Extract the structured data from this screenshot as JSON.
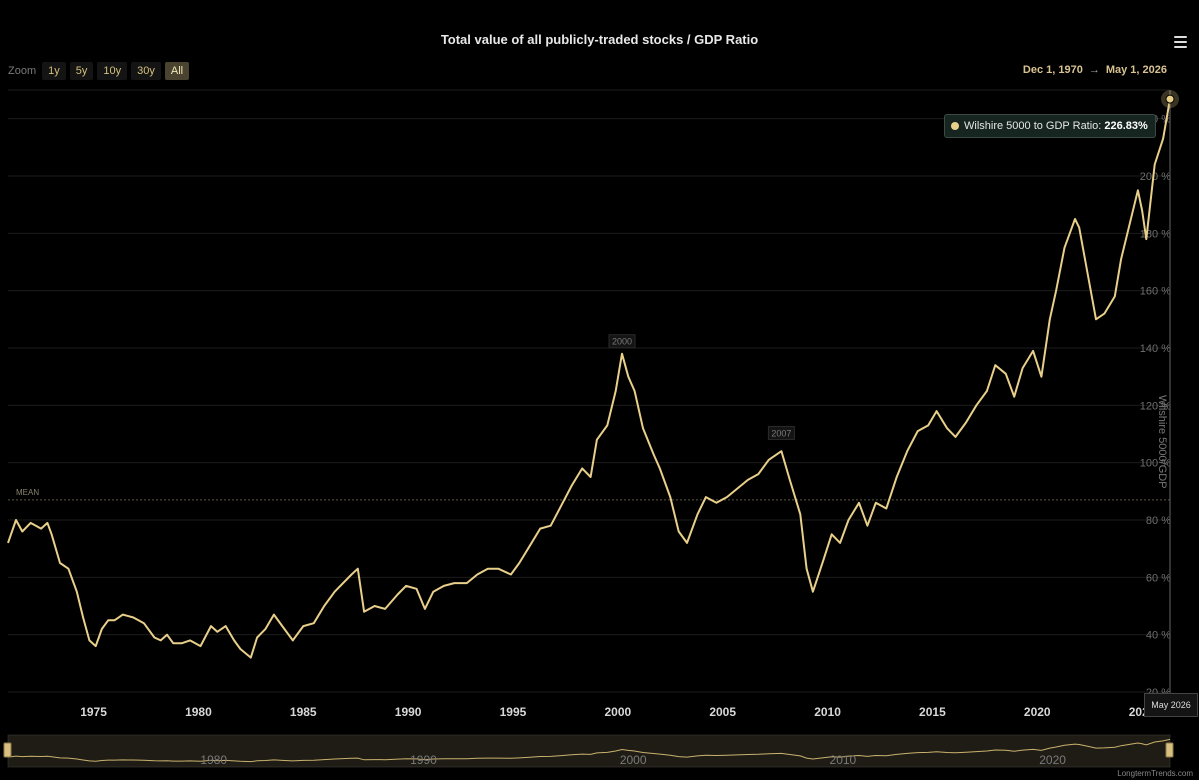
{
  "header": {
    "title": "Total value of all publicly-traded stocks / GDP Ratio"
  },
  "zoom": {
    "label": "Zoom",
    "buttons": [
      "1y",
      "5y",
      "10y",
      "30y",
      "All"
    ],
    "active": "All"
  },
  "range": {
    "from": "Dec 1, 1970",
    "to": "May 1, 2026"
  },
  "tooltip": {
    "series": "Wilshire 5000 to GDP Ratio:",
    "value": "226.83%",
    "date": "May 2026"
  },
  "credit": "LongtermTrends.com",
  "colors": {
    "line": "#e8cf8a",
    "background": "#000000",
    "grid": "#1c1c1c"
  },
  "chart_data": {
    "type": "line",
    "ylabel": "Wilshire 5000/GDP",
    "ylim": [
      20,
      230
    ],
    "xlim": [
      1970.92,
      2026.33
    ],
    "y_ticks": [
      20,
      40,
      60,
      80,
      100,
      120,
      140,
      160,
      180,
      200,
      220
    ],
    "y_tick_suffix": " %",
    "x_ticks": [
      1975,
      1980,
      1985,
      1990,
      1995,
      2000,
      2005,
      2010,
      2015,
      2020,
      2025
    ],
    "navigator_ticks": [
      1980,
      1990,
      2000,
      2010,
      2020
    ],
    "mean": {
      "label": "MEAN",
      "value": 87
    },
    "annotations": [
      {
        "label": "2000",
        "x": 2000.2,
        "y": 138
      },
      {
        "label": "2007",
        "x": 2007.8,
        "y": 106
      }
    ],
    "legend": "none",
    "grid": true,
    "series": [
      {
        "name": "Wilshire 5000 to GDP Ratio",
        "points": [
          [
            1970.92,
            72
          ],
          [
            1971.3,
            80
          ],
          [
            1971.6,
            76
          ],
          [
            1972.0,
            79
          ],
          [
            1972.5,
            77
          ],
          [
            1972.8,
            79
          ],
          [
            1973.0,
            75
          ],
          [
            1973.4,
            65
          ],
          [
            1973.8,
            63
          ],
          [
            1974.2,
            55
          ],
          [
            1974.5,
            46
          ],
          [
            1974.8,
            38
          ],
          [
            1975.1,
            36
          ],
          [
            1975.4,
            42
          ],
          [
            1975.7,
            45
          ],
          [
            1976.0,
            45
          ],
          [
            1976.4,
            47
          ],
          [
            1976.9,
            46
          ],
          [
            1977.4,
            44
          ],
          [
            1977.9,
            39
          ],
          [
            1978.2,
            38
          ],
          [
            1978.5,
            40
          ],
          [
            1978.8,
            37
          ],
          [
            1979.2,
            37
          ],
          [
            1979.6,
            38
          ],
          [
            1980.1,
            36
          ],
          [
            1980.6,
            43
          ],
          [
            1980.9,
            41
          ],
          [
            1981.3,
            43
          ],
          [
            1981.7,
            38
          ],
          [
            1982.0,
            35
          ],
          [
            1982.5,
            32
          ],
          [
            1982.8,
            39
          ],
          [
            1983.2,
            42
          ],
          [
            1983.6,
            47
          ],
          [
            1984.0,
            43
          ],
          [
            1984.5,
            38
          ],
          [
            1985.0,
            43
          ],
          [
            1985.5,
            44
          ],
          [
            1986.0,
            50
          ],
          [
            1986.5,
            55
          ],
          [
            1987.3,
            61
          ],
          [
            1987.6,
            63
          ],
          [
            1987.9,
            48
          ],
          [
            1988.4,
            50
          ],
          [
            1988.9,
            49
          ],
          [
            1989.5,
            54
          ],
          [
            1989.9,
            57
          ],
          [
            1990.4,
            56
          ],
          [
            1990.8,
            49
          ],
          [
            1991.2,
            55
          ],
          [
            1991.7,
            57
          ],
          [
            1992.2,
            58
          ],
          [
            1992.8,
            58
          ],
          [
            1993.3,
            61
          ],
          [
            1993.8,
            63
          ],
          [
            1994.3,
            63
          ],
          [
            1994.9,
            61
          ],
          [
            1995.3,
            65
          ],
          [
            1995.8,
            71
          ],
          [
            1996.3,
            77
          ],
          [
            1996.8,
            78
          ],
          [
            1997.3,
            85
          ],
          [
            1997.8,
            92
          ],
          [
            1998.3,
            98
          ],
          [
            1998.7,
            95
          ],
          [
            1999.0,
            108
          ],
          [
            1999.5,
            113
          ],
          [
            1999.9,
            125
          ],
          [
            2000.2,
            138
          ],
          [
            2000.5,
            130
          ],
          [
            2000.8,
            125
          ],
          [
            2001.2,
            112
          ],
          [
            2001.7,
            103
          ],
          [
            2002.0,
            98
          ],
          [
            2002.5,
            88
          ],
          [
            2002.9,
            76
          ],
          [
            2003.3,
            72
          ],
          [
            2003.8,
            82
          ],
          [
            2004.2,
            88
          ],
          [
            2004.7,
            86
          ],
          [
            2005.2,
            88
          ],
          [
            2005.7,
            91
          ],
          [
            2006.2,
            94
          ],
          [
            2006.7,
            96
          ],
          [
            2007.2,
            101
          ],
          [
            2007.8,
            104
          ],
          [
            2008.2,
            94
          ],
          [
            2008.7,
            82
          ],
          [
            2009.0,
            63
          ],
          [
            2009.3,
            55
          ],
          [
            2009.8,
            66
          ],
          [
            2010.2,
            75
          ],
          [
            2010.6,
            72
          ],
          [
            2011.0,
            80
          ],
          [
            2011.5,
            86
          ],
          [
            2011.9,
            78
          ],
          [
            2012.3,
            86
          ],
          [
            2012.8,
            84
          ],
          [
            2013.3,
            95
          ],
          [
            2013.8,
            104
          ],
          [
            2014.3,
            111
          ],
          [
            2014.8,
            113
          ],
          [
            2015.2,
            118
          ],
          [
            2015.7,
            112
          ],
          [
            2016.1,
            109
          ],
          [
            2016.6,
            114
          ],
          [
            2017.1,
            120
          ],
          [
            2017.6,
            125
          ],
          [
            2018.0,
            134
          ],
          [
            2018.5,
            131
          ],
          [
            2018.9,
            123
          ],
          [
            2019.3,
            133
          ],
          [
            2019.8,
            139
          ],
          [
            2020.2,
            130
          ],
          [
            2020.6,
            150
          ],
          [
            2020.9,
            160
          ],
          [
            2021.3,
            175
          ],
          [
            2021.8,
            185
          ],
          [
            2022.0,
            182
          ],
          [
            2022.4,
            166
          ],
          [
            2022.8,
            150
          ],
          [
            2023.2,
            152
          ],
          [
            2023.7,
            158
          ],
          [
            2024.0,
            171
          ],
          [
            2024.4,
            183
          ],
          [
            2024.8,
            195
          ],
          [
            2025.0,
            188
          ],
          [
            2025.2,
            178
          ],
          [
            2025.6,
            204
          ],
          [
            2026.0,
            213
          ],
          [
            2026.33,
            226.83
          ]
        ]
      }
    ]
  }
}
